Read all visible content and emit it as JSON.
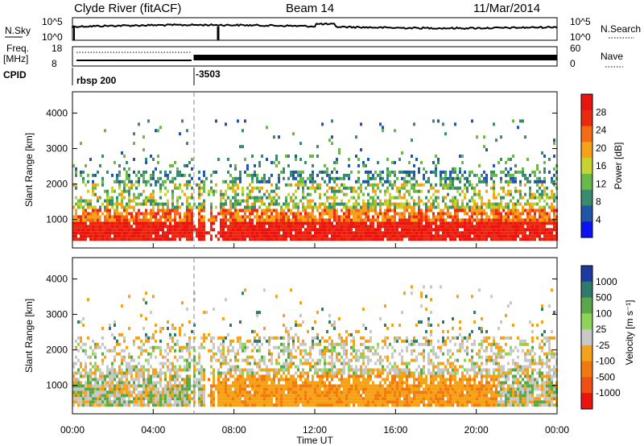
{
  "header": {
    "station": "Clyde River (fitACF)",
    "beam": "Beam 14",
    "date": "11/Mar/2014"
  },
  "top_panels": {
    "nsky_label": "N.Sky",
    "nsky_ticks": [
      "10^5",
      "10^0"
    ],
    "nsearch_label": "N.Search",
    "nsearch_ticks": [
      "10^5",
      "10^0"
    ],
    "freq_label": "Freq.",
    "freq_unit": "[MHz]",
    "freq_ticks": [
      "18",
      "8"
    ],
    "nave_label": "Nave",
    "nave_ticks": [
      "60",
      "0"
    ],
    "cpid_label": "CPID",
    "cpid_name": "rbsp 200",
    "cpid_value": "-3503"
  },
  "x_axis": {
    "label": "Time UT",
    "tick_labels": [
      "00:00",
      "04:00",
      "08:00",
      "12:00",
      "16:00",
      "20:00",
      "00:00"
    ],
    "range_hours": [
      0,
      24
    ],
    "mode_change_time_h": 6.0
  },
  "colors": {
    "power_scale": [
      "#0a14f0",
      "#2255a8",
      "#3a8a6e",
      "#6ab84a",
      "#c7d330",
      "#f4a21a",
      "#f36b14",
      "#e82a12",
      "#e8140f"
    ],
    "velocity_scale": [
      "#1f3a9e",
      "#2f7a6a",
      "#5aa84a",
      "#8fd35a",
      "#c8c8c8",
      "#f4a21a",
      "#f07a10",
      "#f04f14",
      "#e8140f"
    ]
  },
  "chart_data": [
    {
      "type": "heatmap",
      "name": "power",
      "ylabel": "Slant Range [km]",
      "yticks": [
        "1000",
        "2000",
        "3000",
        "4000"
      ],
      "ylim": [
        200,
        4600
      ],
      "colorbar_label": "Power [dB]",
      "colorbar_ticks": [
        "4",
        "8",
        "12",
        "16",
        "20",
        "24",
        "28"
      ],
      "colorbar_range": [
        0,
        32
      ]
    },
    {
      "type": "heatmap",
      "name": "velocity",
      "ylabel": "Slant Range [km]",
      "yticks": [
        "1000",
        "2000",
        "3000",
        "4000"
      ],
      "ylim": [
        200,
        4600
      ],
      "colorbar_label": "Velocity [m s⁻¹]",
      "colorbar_ticks": [
        "1000",
        "500",
        "100",
        "25",
        "-25",
        "-100",
        "-500",
        "-1000"
      ]
    }
  ]
}
